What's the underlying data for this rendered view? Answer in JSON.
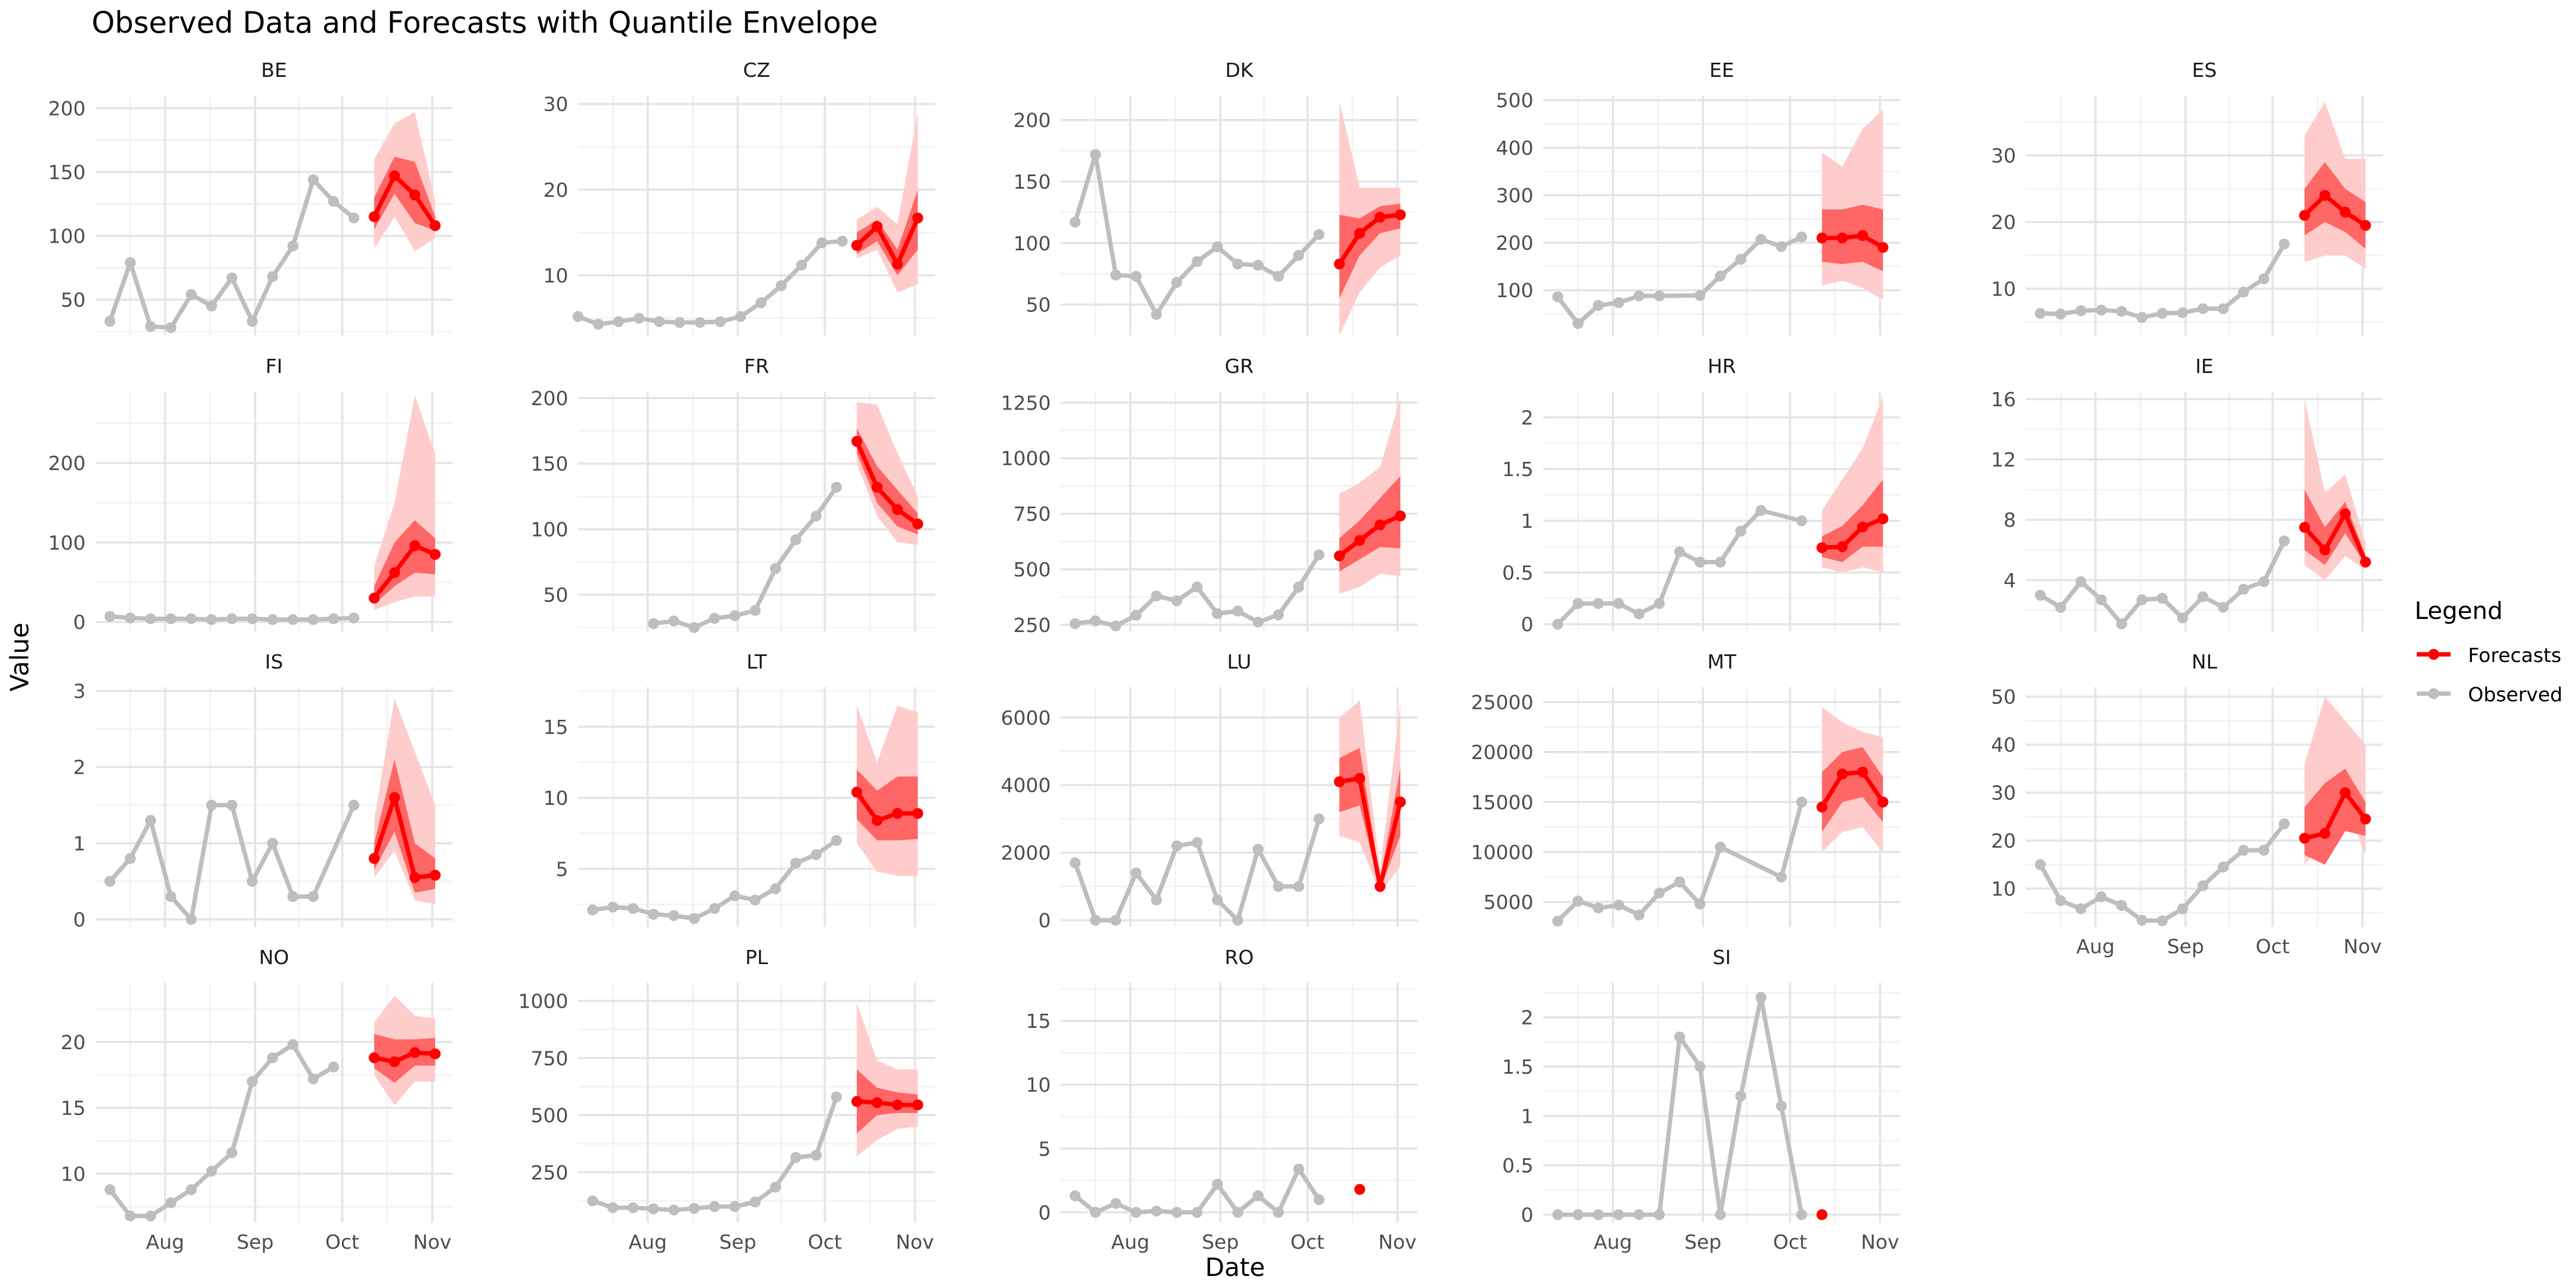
{
  "title": "Observed Data and Forecasts with Quantile Envelope",
  "colors": {
    "observed": "#bebebe",
    "forecast": "#ff0000",
    "band_outer": "#ffcccc",
    "band_inner": "#ff6666",
    "grid_major": "#e5e5e5",
    "grid_minor": "#f2f2f2",
    "text": "#4d4d4d"
  },
  "chart_data": {
    "type": "line",
    "title": "Observed Data and Forecasts with Quantile Envelope",
    "xlabel": "Date",
    "ylabel": "Value",
    "x_axis": {
      "ticks": [
        "Aug",
        "Sep",
        "Oct",
        "Nov"
      ],
      "tick_dates": [
        "2024-08-01",
        "2024-09-01",
        "2024-10-01",
        "2024-11-01"
      ],
      "range": [
        "2024-07-08",
        "2024-11-08"
      ]
    },
    "grid": true,
    "legend": {
      "title": "Legend",
      "position": "right",
      "entries": [
        "Forecasts",
        "Observed"
      ]
    },
    "observed_dates": [
      "2024-07-13",
      "2024-07-20",
      "2024-07-27",
      "2024-08-03",
      "2024-08-10",
      "2024-08-17",
      "2024-08-24",
      "2024-08-31",
      "2024-09-07",
      "2024-09-14",
      "2024-09-21",
      "2024-09-28",
      "2024-10-05"
    ],
    "forecast_dates": [
      "2024-10-12",
      "2024-10-19",
      "2024-10-26",
      "2024-11-02"
    ],
    "panels": [
      {
        "name": "BE",
        "yticks": [
          50,
          100,
          150,
          200
        ],
        "ylim": [
          22,
          210
        ],
        "observed": [
          33,
          79,
          29,
          28,
          54,
          45,
          67,
          33,
          68,
          92,
          144,
          127,
          114
        ],
        "forecast": [
          115,
          147,
          132,
          108
        ],
        "q05": [
          90,
          115,
          88,
          98
        ],
        "q25": [
          105,
          133,
          110,
          104
        ],
        "q75": [
          130,
          162,
          158,
          115
        ],
        "q95": [
          160,
          188,
          197,
          127
        ]
      },
      {
        "name": "CZ",
        "yticks": [
          10,
          20,
          30
        ],
        "ylim": [
          3,
          31
        ],
        "observed": [
          5.2,
          4.3,
          4.6,
          5.0,
          4.6,
          4.5,
          4.5,
          4.6,
          5.2,
          6.8,
          8.8,
          11.2,
          13.8,
          14.0
        ],
        "observed_dates_override": [
          "2024-07-08",
          "2024-07-15",
          "2024-07-22",
          "2024-07-29",
          "2024-08-05",
          "2024-08-12",
          "2024-08-19",
          "2024-08-26",
          "2024-09-02",
          "2024-09-09",
          "2024-09-16",
          "2024-09-23",
          "2024-09-30",
          "2024-10-07"
        ],
        "forecast": [
          13.5,
          15.7,
          11.3,
          16.7
        ],
        "q05": [
          12,
          13,
          8,
          9
        ],
        "q25": [
          12.5,
          14,
          10,
          13
        ],
        "q75": [
          15,
          16.5,
          13,
          20
        ],
        "q95": [
          16.5,
          18,
          16,
          29
        ]
      },
      {
        "name": "DK",
        "yticks": [
          50,
          100,
          150,
          200
        ],
        "ylim": [
          25,
          220
        ],
        "observed": [
          117,
          172,
          74,
          73,
          42,
          68,
          85,
          97,
          83,
          82,
          73,
          90,
          107
        ],
        "forecast": [
          83,
          108,
          121,
          123
        ],
        "q05": [
          25,
          60,
          80,
          90
        ],
        "q25": [
          55,
          90,
          108,
          112
        ],
        "q75": [
          123,
          120,
          130,
          132
        ],
        "q95": [
          215,
          145,
          145,
          145
        ]
      },
      {
        "name": "EE",
        "yticks": [
          100,
          200,
          300,
          400,
          500
        ],
        "ylim": [
          5,
          510
        ],
        "observed": [
          86,
          30,
          68,
          74,
          88,
          88,
          89,
          130,
          165,
          207,
          192,
          212
        ],
        "observed_dates_override": [
          "2024-07-13",
          "2024-07-20",
          "2024-07-27",
          "2024-08-03",
          "2024-08-10",
          "2024-08-17",
          "2024-08-31",
          "2024-09-07",
          "2024-09-14",
          "2024-09-21",
          "2024-09-28",
          "2024-10-05"
        ],
        "forecast": [
          210,
          210,
          215,
          190
        ],
        "q05": [
          110,
          120,
          105,
          80
        ],
        "q25": [
          160,
          155,
          160,
          140
        ],
        "q75": [
          270,
          270,
          280,
          270
        ],
        "q95": [
          390,
          360,
          440,
          480
        ]
      },
      {
        "name": "ES",
        "yticks": [
          10,
          20,
          30
        ],
        "ylim": [
          3,
          39
        ],
        "observed": [
          6.3,
          6.2,
          6.7,
          6.8,
          6.6,
          5.7,
          6.3,
          6.4,
          7.0,
          7.0,
          9.5,
          11.5,
          16.7
        ],
        "forecast": [
          21,
          24,
          21.5,
          19.5
        ],
        "q05": [
          14,
          15,
          15,
          13
        ],
        "q25": [
          18,
          20,
          18.5,
          16
        ],
        "q75": [
          25,
          29,
          25,
          23
        ],
        "q95": [
          33,
          38,
          29.5,
          29.5
        ]
      },
      {
        "name": "FI",
        "yticks": [
          0,
          100,
          200
        ],
        "ylim": [
          -12,
          290
        ],
        "observed": [
          7,
          5,
          4,
          4,
          4,
          3,
          4,
          4,
          3,
          3,
          3,
          4,
          5
        ],
        "forecast": [
          30,
          62,
          96,
          85
        ],
        "q05": [
          15,
          25,
          32,
          32
        ],
        "q25": [
          22,
          45,
          62,
          60
        ],
        "q75": [
          45,
          100,
          128,
          105
        ],
        "q95": [
          70,
          150,
          285,
          212
        ]
      },
      {
        "name": "FR",
        "yticks": [
          50,
          100,
          150,
          200
        ],
        "ylim": [
          22,
          205
        ],
        "observed": [
          28,
          30,
          25,
          32,
          34,
          38,
          70,
          92,
          110,
          132
        ],
        "observed_dates_override": [
          "2024-08-03",
          "2024-08-10",
          "2024-08-17",
          "2024-08-24",
          "2024-08-31",
          "2024-09-07",
          "2024-09-14",
          "2024-09-21",
          "2024-09-28",
          "2024-10-05"
        ],
        "forecast": [
          167,
          132,
          115,
          104
        ],
        "q05": [
          150,
          110,
          90,
          88
        ],
        "q25": [
          158,
          120,
          102,
          96
        ],
        "q75": [
          177,
          148,
          130,
          112
        ],
        "q95": [
          197,
          195,
          158,
          125
        ]
      },
      {
        "name": "GR",
        "yticks": [
          250,
          500,
          750,
          1000,
          1250
        ],
        "ylim": [
          220,
          1300
        ],
        "observed": [
          255,
          268,
          245,
          293,
          380,
          358,
          420,
          300,
          312,
          262,
          295,
          420,
          565
        ],
        "forecast": [
          560,
          630,
          700,
          740
        ],
        "q05": [
          390,
          420,
          480,
          470
        ],
        "q25": [
          490,
          545,
          600,
          595
        ],
        "q75": [
          640,
          720,
          820,
          920
        ],
        "q95": [
          840,
          890,
          960,
          1270
        ]
      },
      {
        "name": "HR",
        "yticks": [
          0.0,
          0.5,
          1.0,
          1.5,
          2.0
        ],
        "ylim": [
          -0.07,
          2.25
        ],
        "observed": [
          0.0,
          0.2,
          0.2,
          0.2,
          0.1,
          0.2,
          0.7,
          0.6,
          0.6,
          0.9,
          1.1,
          1.0
        ],
        "observed_dates_override": [
          "2024-07-13",
          "2024-07-20",
          "2024-07-27",
          "2024-08-03",
          "2024-08-10",
          "2024-08-17",
          "2024-08-24",
          "2024-08-31",
          "2024-09-07",
          "2024-09-14",
          "2024-09-21",
          "2024-10-05"
        ],
        "forecast": [
          0.74,
          0.75,
          0.94,
          1.02
        ],
        "q05": [
          0.55,
          0.5,
          0.55,
          0.5
        ],
        "q25": [
          0.65,
          0.6,
          0.75,
          0.75
        ],
        "q75": [
          0.85,
          0.95,
          1.15,
          1.4
        ],
        "q95": [
          1.1,
          1.4,
          1.7,
          2.2
        ]
      },
      {
        "name": "IE",
        "yticks": [
          4,
          8,
          12,
          16
        ],
        "ylim": [
          0.6,
          16.5
        ],
        "observed": [
          3.0,
          2.2,
          3.9,
          2.7,
          1.1,
          2.7,
          2.8,
          1.5,
          2.9,
          2.2,
          3.4,
          3.9,
          6.6
        ],
        "forecast": [
          7.5,
          6.0,
          8.4,
          5.2
        ],
        "q05": [
          5.0,
          4.0,
          5.6,
          4.7
        ],
        "q25": [
          6.0,
          5.0,
          7.1,
          5.0
        ],
        "q75": [
          10.0,
          7.5,
          9.2,
          5.6
        ],
        "q95": [
          16.0,
          9.8,
          11.0,
          6.5
        ]
      },
      {
        "name": "IS",
        "yticks": [
          0,
          1,
          2,
          3
        ],
        "ylim": [
          -0.1,
          3.05
        ],
        "observed": [
          0.5,
          0.8,
          1.3,
          0.3,
          0.0,
          1.5,
          1.5,
          0.5,
          1.0,
          0.3,
          0.3,
          1.5
        ],
        "observed_dates_override": [
          "2024-07-13",
          "2024-07-20",
          "2024-07-27",
          "2024-08-03",
          "2024-08-10",
          "2024-08-17",
          "2024-08-24",
          "2024-08-31",
          "2024-09-07",
          "2024-09-14",
          "2024-09-21",
          "2024-10-05"
        ],
        "forecast": [
          0.8,
          1.6,
          0.55,
          0.58
        ],
        "q05": [
          0.55,
          0.9,
          0.25,
          0.2
        ],
        "q25": [
          0.65,
          1.15,
          0.35,
          0.4
        ],
        "q75": [
          1.0,
          2.1,
          1.0,
          0.8
        ],
        "q95": [
          1.3,
          2.9,
          2.2,
          1.5
        ]
      },
      {
        "name": "LT",
        "yticks": [
          5,
          10,
          15
        ],
        "ylim": [
          0.9,
          17.8
        ],
        "observed": [
          2.1,
          2.3,
          2.2,
          1.8,
          1.7,
          1.5,
          2.2,
          3.1,
          2.8,
          3.6,
          5.4,
          6.0,
          7.0
        ],
        "forecast": [
          10.4,
          8.4,
          8.9,
          8.9
        ],
        "q05": [
          6.8,
          4.8,
          4.5,
          4.5
        ],
        "q25": [
          8.5,
          7.0,
          7.0,
          7.1
        ],
        "q75": [
          12.0,
          10.5,
          11.5,
          11.5
        ],
        "q95": [
          16.5,
          12.5,
          16.5,
          16.0
        ]
      },
      {
        "name": "LU",
        "yticks": [
          0,
          2000,
          4000,
          6000
        ],
        "ylim": [
          -200,
          6900
        ],
        "observed": [
          1700,
          0,
          0,
          1400,
          600,
          2200,
          2300,
          600,
          0,
          2100,
          1000,
          1000,
          3000
        ],
        "forecast": [
          4100,
          4200,
          1000,
          3500
        ],
        "q05": [
          2500,
          2300,
          800,
          1600
        ],
        "q25": [
          3200,
          3400,
          900,
          2500
        ],
        "q75": [
          4800,
          5100,
          1200,
          4500
        ],
        "q95": [
          6000,
          6500,
          1500,
          6400
        ]
      },
      {
        "name": "MT",
        "yticks": [
          5000,
          10000,
          15000,
          20000,
          25000
        ],
        "ylim": [
          2500,
          26500
        ],
        "observed": [
          3100,
          5100,
          4400,
          4700,
          3700,
          5900,
          7000,
          4800,
          10500,
          7500,
          15000
        ],
        "observed_dates_override": [
          "2024-07-13",
          "2024-07-20",
          "2024-07-27",
          "2024-08-03",
          "2024-08-10",
          "2024-08-17",
          "2024-08-24",
          "2024-08-31",
          "2024-09-07",
          "2024-09-28",
          "2024-10-05"
        ],
        "forecast": [
          14500,
          17800,
          18000,
          15000
        ],
        "q05": [
          10000,
          12000,
          12500,
          10000
        ],
        "q25": [
          12000,
          15000,
          15500,
          13000
        ],
        "q75": [
          18000,
          20000,
          20500,
          17500
        ],
        "q95": [
          24500,
          23000,
          22000,
          21500
        ]
      },
      {
        "name": "NL",
        "yticks": [
          10,
          20,
          30,
          40,
          50
        ],
        "ylim": [
          2,
          52
        ],
        "observed": [
          15,
          7.5,
          5.8,
          8.3,
          6.5,
          3.4,
          3.3,
          5.8,
          10.6,
          14.5,
          18,
          18,
          23.5
        ],
        "forecast": [
          20.5,
          21.5,
          30,
          24.5
        ],
        "q05": [
          15,
          20,
          28,
          17
        ],
        "q25": [
          17,
          15,
          22,
          21
        ],
        "q75": [
          27,
          32,
          35,
          28
        ],
        "q95": [
          36,
          50,
          45,
          40
        ]
      },
      {
        "name": "NO",
        "yticks": [
          10,
          15,
          20
        ],
        "ylim": [
          6.3,
          24.5
        ],
        "observed": [
          8.8,
          6.8,
          6.8,
          7.8,
          8.8,
          10.2,
          11.6,
          17.0,
          18.8,
          19.8,
          17.2,
          18.1
        ],
        "observed_dates_override": [
          "2024-07-13",
          "2024-07-20",
          "2024-07-27",
          "2024-08-03",
          "2024-08-10",
          "2024-08-17",
          "2024-08-24",
          "2024-08-31",
          "2024-09-07",
          "2024-09-14",
          "2024-09-21",
          "2024-09-28"
        ],
        "forecast": [
          18.8,
          18.5,
          19.2,
          19.1
        ],
        "q05": [
          17.5,
          15.2,
          17.0,
          17.0
        ],
        "q25": [
          18.0,
          16.9,
          18.2,
          18.2
        ],
        "q75": [
          20.6,
          20.2,
          20.2,
          20.3
        ],
        "q95": [
          21.5,
          23.5,
          22.0,
          21.8
        ]
      },
      {
        "name": "PL",
        "yticks": [
          250,
          500,
          750,
          1000
        ],
        "ylim": [
          30,
          1080
        ],
        "observed": [
          125,
          95,
          95,
          90,
          85,
          92,
          100,
          100,
          120,
          185,
          315,
          325,
          580
        ],
        "forecast": [
          560,
          555,
          545,
          545
        ],
        "q05": [
          320,
          390,
          440,
          450
        ],
        "q25": [
          420,
          500,
          510,
          510
        ],
        "q75": [
          700,
          620,
          600,
          590
        ],
        "q95": [
          990,
          740,
          700,
          700
        ]
      },
      {
        "name": "RO",
        "yticks": [
          0,
          5,
          10,
          15
        ],
        "ylim": [
          -0.8,
          18
        ],
        "observed": [
          1.3,
          0,
          0.7,
          0,
          0.1,
          0,
          0,
          2.2,
          0,
          1.3,
          0,
          3.4,
          1.0
        ],
        "forecast": [
          1.8
        ],
        "forecast_dates_override": [
          "2024-10-19"
        ]
      },
      {
        "name": "SI",
        "yticks": [
          0.0,
          0.5,
          1.0,
          1.5,
          2.0
        ],
        "ylim": [
          -0.08,
          2.35
        ],
        "observed": [
          0,
          0,
          0,
          0,
          0,
          0,
          1.8,
          1.5,
          0,
          1.2,
          2.2,
          1.1,
          0
        ],
        "forecast": [
          0
        ],
        "forecast_dates_override": [
          "2024-10-12"
        ]
      }
    ]
  }
}
